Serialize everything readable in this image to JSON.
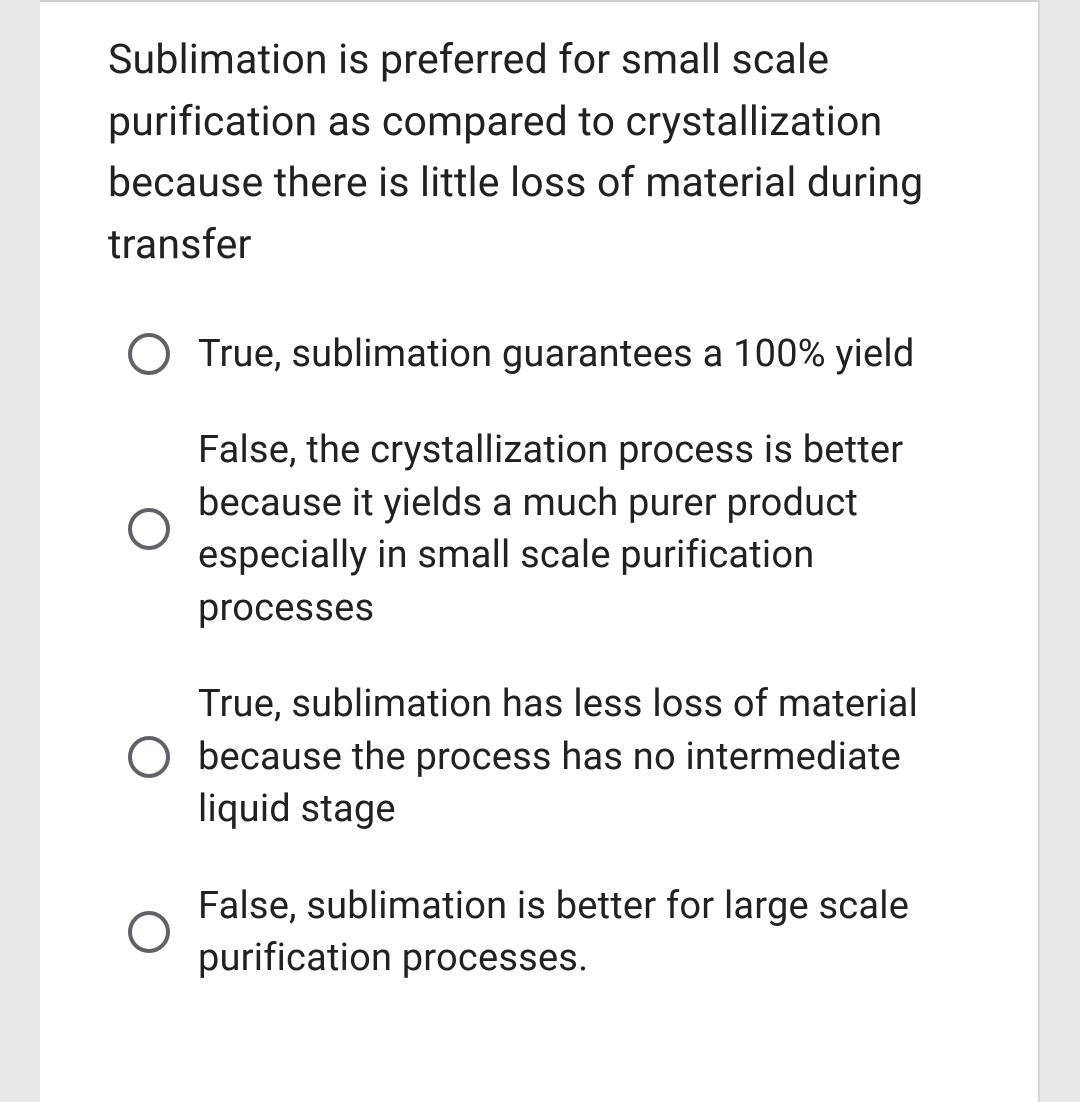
{
  "question": {
    "text": "Sublimation is preferred for small scale purification as compared to crystallization because there is little loss of material during transfer"
  },
  "options": [
    {
      "label": "True, sublimation guarantees a 100% yield"
    },
    {
      "label": "False, the crystallization process is better because it yields a much purer product especially in small scale purification processes"
    },
    {
      "label": "True, sublimation has less loss of material because the process has no intermediate liquid stage"
    },
    {
      "label": "False, sublimation is better for large scale purification processes."
    }
  ],
  "colors": {
    "background": "#e8e8e8",
    "card_background": "#ffffff",
    "text": "#212121",
    "radio_border": "#5f6368",
    "top_border": "#d0d0d0"
  }
}
